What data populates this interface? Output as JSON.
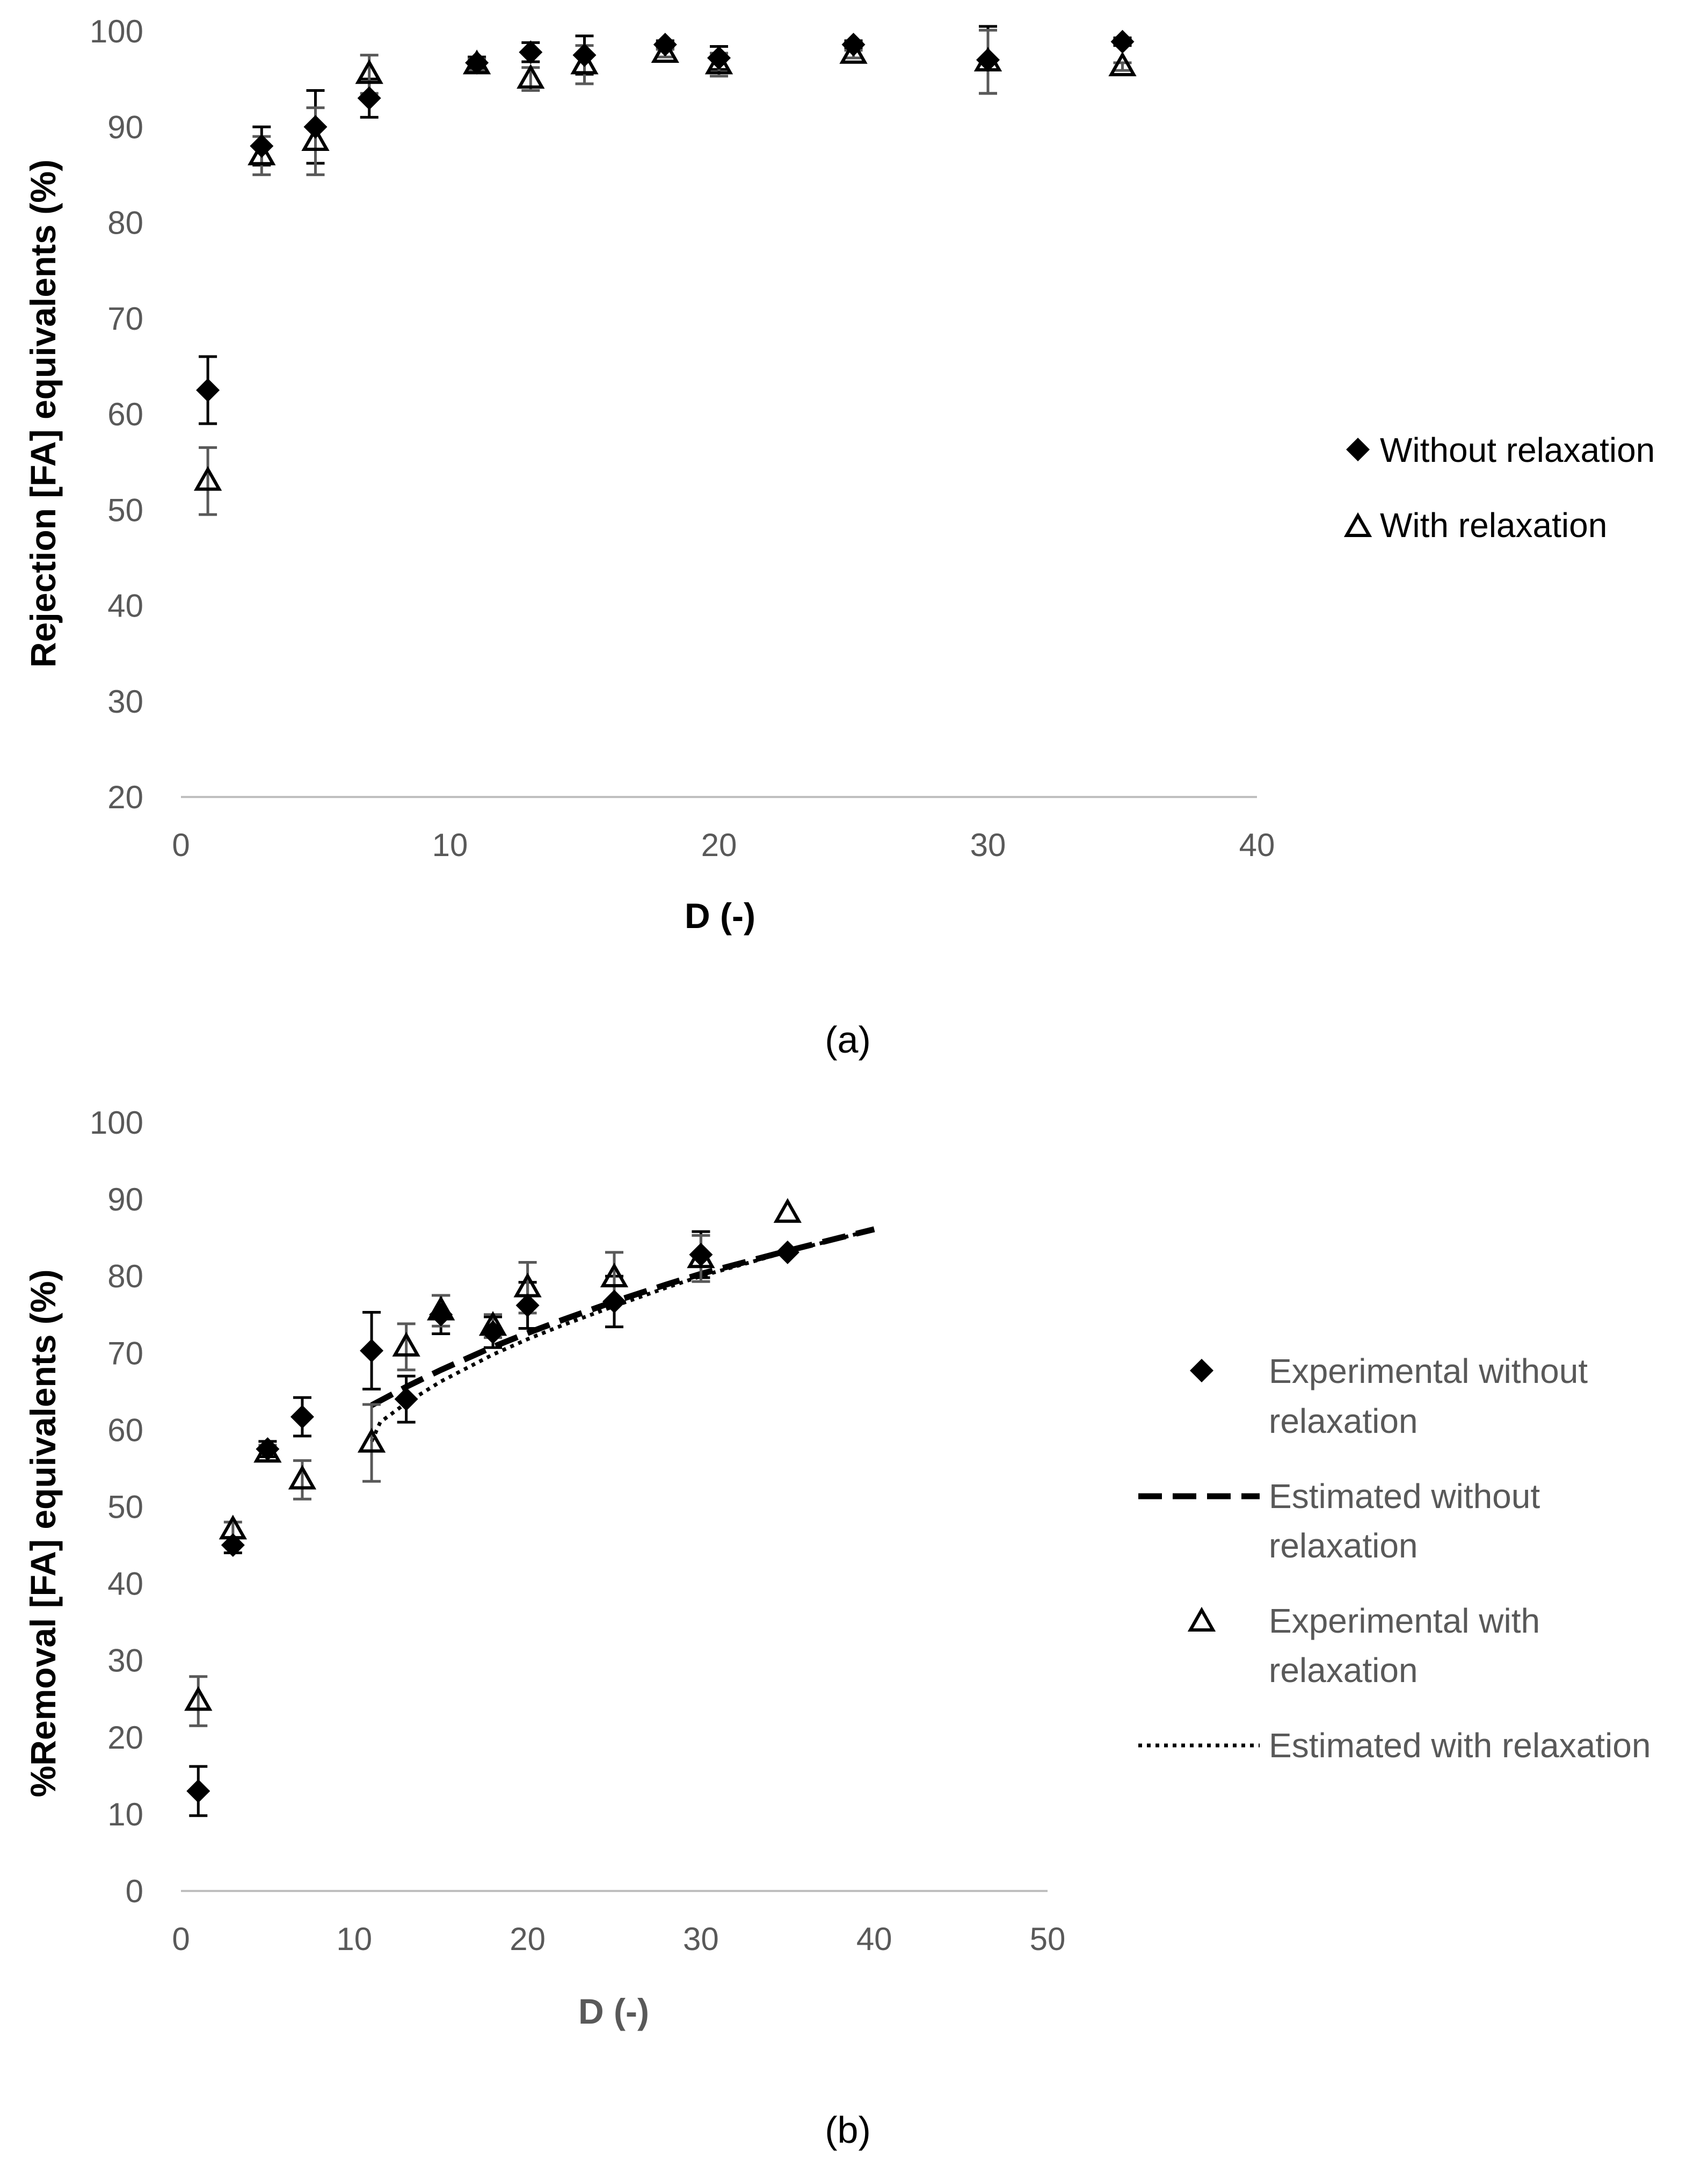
{
  "chart_data": [
    {
      "type": "scatter",
      "panel_label": "(a)",
      "xlabel": "D (-)",
      "ylabel": "Rejection [FA] equivalents (%)",
      "xlim": [
        0,
        40
      ],
      "ylim": [
        20,
        100
      ],
      "x_ticks": [
        0,
        10,
        20,
        30,
        40
      ],
      "y_ticks": [
        20,
        30,
        40,
        50,
        60,
        70,
        80,
        90,
        100
      ],
      "grid": false,
      "legend_position": "right",
      "series": [
        {
          "name": "Without relaxation",
          "marker": "diamond",
          "x": [
            1,
            3,
            5,
            7,
            11,
            13,
            15,
            18,
            20,
            25,
            30,
            35
          ],
          "y": [
            62.5,
            88,
            90,
            93,
            96.7,
            97.8,
            97.5,
            98.6,
            97.2,
            98.6,
            97,
            98.9
          ],
          "err": [
            3.5,
            2,
            3.8,
            2,
            0.6,
            1,
            2,
            0.4,
            1.2,
            0.4,
            3.5,
            0.4
          ]
        },
        {
          "name": "With relaxation",
          "marker": "triangle",
          "x": [
            1,
            3,
            5,
            7,
            11,
            13,
            15,
            18,
            20,
            25,
            30,
            35
          ],
          "y": [
            53,
            87,
            88.5,
            95.5,
            96.5,
            95,
            96.5,
            97.7,
            96.5,
            97.6,
            96.8,
            96.3
          ],
          "err": [
            3.5,
            2,
            3.5,
            2,
            0.6,
            1.2,
            2,
            0.4,
            1.2,
            0.4,
            3.3,
            0.4
          ]
        }
      ]
    },
    {
      "type": "scatter",
      "panel_label": "(b)",
      "xlabel": "D (-)",
      "ylabel": "%Removal [FA] equivalents (%)",
      "xlim": [
        0,
        50
      ],
      "ylim": [
        0,
        100
      ],
      "x_ticks": [
        0,
        10,
        20,
        30,
        40,
        50
      ],
      "y_ticks": [
        0,
        10,
        20,
        30,
        40,
        50,
        60,
        70,
        80,
        90,
        100
      ],
      "grid": false,
      "legend_position": "right",
      "series": [
        {
          "name": "Experimental without relaxation",
          "legend_lines": [
            "Experimental without",
            "relaxation"
          ],
          "marker": "diamond",
          "x": [
            1,
            3,
            5,
            7,
            11,
            13,
            15,
            18,
            20,
            25,
            30,
            35
          ],
          "y": [
            13,
            45,
            57.5,
            61.7,
            70.3,
            64,
            75,
            72.7,
            76.2,
            76.7,
            82.8,
            83.1
          ],
          "err": [
            3.2,
            1,
            1,
            2.5,
            5,
            3,
            2.5,
            2,
            3,
            3.3,
            3,
            0
          ]
        },
        {
          "name": "Estimated without relaxation",
          "legend_lines": [
            "Estimated without",
            "relaxation"
          ],
          "line_style": "dashed",
          "x": [
            11,
            13,
            15,
            18,
            20,
            22,
            25,
            28,
            30,
            33,
            35,
            38,
            40
          ],
          "y": [
            63.2,
            65.6,
            67.8,
            70.8,
            72.6,
            74.3,
            76.7,
            78.9,
            80.3,
            82.1,
            83.3,
            85,
            86.1
          ]
        },
        {
          "name": "Experimental with relaxation",
          "legend_lines": [
            "Experimental with",
            "relaxation"
          ],
          "marker": "triangle",
          "x": [
            1,
            3,
            5,
            7,
            11,
            13,
            15,
            18,
            20,
            25,
            30,
            35
          ],
          "y": [
            24.7,
            47,
            57,
            53.5,
            58.3,
            70.8,
            75.5,
            73.5,
            78.5,
            79.8,
            82.3,
            88.2
          ],
          "err": [
            3.2,
            1,
            1,
            2.5,
            5,
            3,
            2,
            1.5,
            3.3,
            3.3,
            3,
            0
          ]
        },
        {
          "name": "Estimated with relaxation",
          "legend_lines": [
            "Estimated with relaxation"
          ],
          "line_style": "dotted",
          "x": [
            11,
            11.5,
            13,
            15,
            18,
            20,
            22,
            25,
            28,
            30,
            33,
            35,
            38,
            40
          ],
          "y": [
            58.5,
            61,
            63.5,
            66.3,
            69.8,
            71.8,
            73.6,
            76.1,
            78.5,
            80,
            81.9,
            83.2,
            84.9,
            86.1
          ]
        }
      ]
    }
  ]
}
